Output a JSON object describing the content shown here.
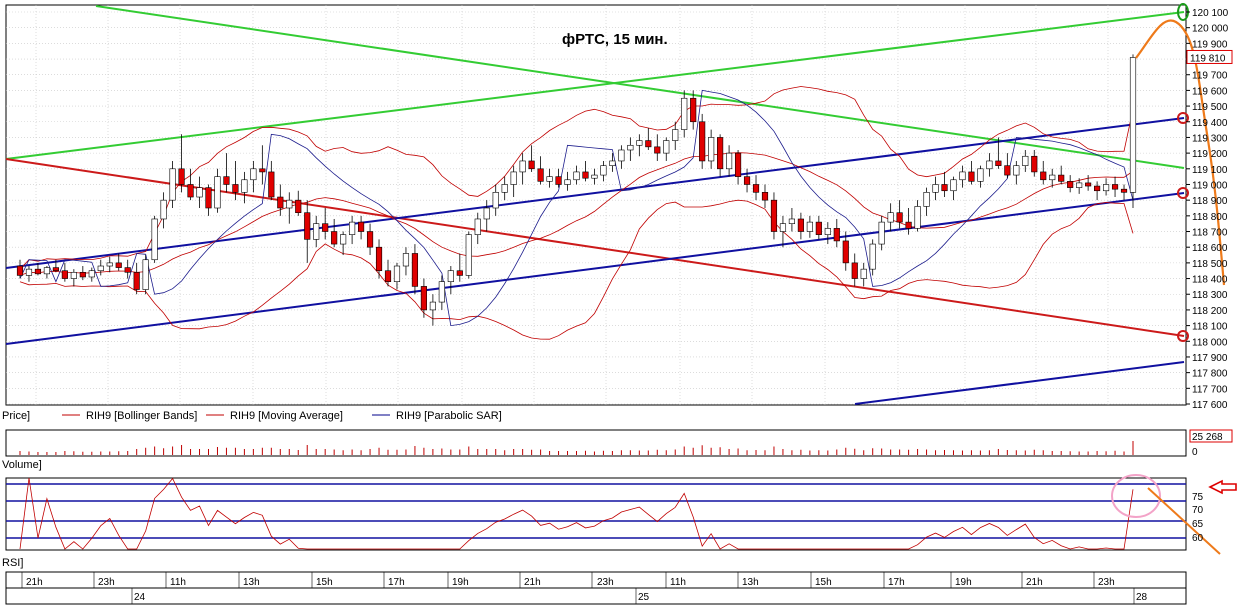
{
  "chart_title": "фРТС,  15 мин.",
  "panels": {
    "price_label": "Price]",
    "volume_label": "Volume]",
    "rsi_label": "RSI]"
  },
  "legend": [
    {
      "label": "RIH9 [Bollinger Bands]",
      "color": "#c00000"
    },
    {
      "label": "RIH9 [Moving Average]",
      "color": "#c00000"
    },
    {
      "label": "RIH9 [Parabolic SAR]",
      "color": "#00008b"
    }
  ],
  "colors": {
    "candle_up": "#ffffff",
    "candle_down": "#e00000",
    "bollinger": "#c00000",
    "sar": "#1c1c8c",
    "channel_blue": "#1010a0",
    "trend_green": "#33cc33",
    "trend_red": "#cc1a1a",
    "forecast_orange": "#ee7a1a",
    "grid": "#c8c8c8"
  },
  "price_axis": {
    "ticks": [
      120100,
      120000,
      119900,
      119800,
      119700,
      119600,
      119500,
      119400,
      119300,
      119200,
      119100,
      119000,
      118900,
      118800,
      118700,
      118600,
      118500,
      118400,
      118300,
      118200,
      118100,
      118000,
      117900,
      117800,
      117700,
      117600
    ],
    "tick_labels": [
      "120 100",
      "120 000",
      "119 900",
      "",
      "119 700",
      "119 600",
      "119 500",
      "119 400",
      "119 300",
      "119 200",
      "119 100",
      "119 000",
      "118 900",
      "118 800",
      "118 700",
      "118 600",
      "118 500",
      "118 400",
      "118 300",
      "118 200",
      "118 100",
      "118 000",
      "117 900",
      "117 800",
      "117 700",
      "117 600"
    ],
    "last_price": "119 810",
    "ylim": [
      117600,
      120150
    ]
  },
  "volume_axis": {
    "last_value": "25 268",
    "zero_label": "0"
  },
  "rsi_axis": {
    "tick_labels": [
      "75",
      "70",
      "65",
      "60"
    ],
    "levels": [
      80,
      75,
      65,
      60
    ]
  },
  "time_axis": {
    "hour_labels": [
      "21h",
      "23h",
      "11h",
      "13h",
      "15h",
      "17h",
      "19h",
      "21h",
      "23h",
      "11h",
      "13h",
      "15h",
      "17h",
      "19h",
      "21h",
      "23h"
    ],
    "date_labels": [
      "24",
      "25",
      "28"
    ]
  },
  "chart_data": {
    "type": "candlestick",
    "title": "фРТС,  15 мин.",
    "series": [
      {
        "name": "RIH9 [Bollinger Bands]"
      },
      {
        "name": "RIH9 [Moving Average]"
      },
      {
        "name": "RIH9 [Parabolic SAR]"
      }
    ],
    "ylim": [
      117600,
      120150
    ],
    "candles": [
      [
        118480,
        118520,
        118400,
        118420
      ],
      [
        118420,
        118480,
        118380,
        118460
      ],
      [
        118460,
        118500,
        118420,
        118430
      ],
      [
        118430,
        118480,
        118400,
        118470
      ],
      [
        118470,
        118520,
        118440,
        118450
      ],
      [
        118450,
        118500,
        118380,
        118400
      ],
      [
        118400,
        118460,
        118350,
        118440
      ],
      [
        118440,
        118480,
        118390,
        118410
      ],
      [
        118410,
        118470,
        118380,
        118450
      ],
      [
        118450,
        118520,
        118420,
        118480
      ],
      [
        118480,
        118540,
        118440,
        118500
      ],
      [
        118500,
        118560,
        118450,
        118470
      ],
      [
        118470,
        118520,
        118400,
        118440
      ],
      [
        118440,
        118500,
        118300,
        118330
      ],
      [
        118330,
        118550,
        118300,
        118520
      ],
      [
        118520,
        118800,
        118500,
        118780
      ],
      [
        118780,
        118950,
        118720,
        118900
      ],
      [
        118900,
        119150,
        118850,
        119100
      ],
      [
        119100,
        119320,
        118950,
        119000
      ],
      [
        119000,
        119100,
        118900,
        118920
      ],
      [
        118920,
        119050,
        118850,
        118980
      ],
      [
        118980,
        119000,
        118800,
        118850
      ],
      [
        118850,
        119100,
        118820,
        119050
      ],
      [
        119050,
        119200,
        118950,
        119000
      ],
      [
        119000,
        119150,
        118900,
        118950
      ],
      [
        118950,
        119080,
        118880,
        119030
      ],
      [
        119030,
        119150,
        118950,
        119100
      ],
      [
        119100,
        119250,
        119000,
        119080
      ],
      [
        119080,
        119150,
        118900,
        118920
      ],
      [
        118920,
        119000,
        118800,
        118850
      ],
      [
        118850,
        118950,
        118750,
        118900
      ],
      [
        118900,
        118960,
        118800,
        118820
      ],
      [
        118820,
        118900,
        118500,
        118650
      ],
      [
        118650,
        118800,
        118600,
        118750
      ],
      [
        118750,
        118850,
        118650,
        118700
      ],
      [
        118700,
        118780,
        118600,
        118620
      ],
      [
        118620,
        118700,
        118550,
        118680
      ],
      [
        118680,
        118800,
        118620,
        118760
      ],
      [
        118760,
        118800,
        118650,
        118700
      ],
      [
        118700,
        118750,
        118550,
        118600
      ],
      [
        118600,
        118650,
        118400,
        118450
      ],
      [
        118450,
        118520,
        118350,
        118380
      ],
      [
        118380,
        118500,
        118330,
        118480
      ],
      [
        118480,
        118600,
        118420,
        118560
      ],
      [
        118560,
        118620,
        118300,
        118350
      ],
      [
        118350,
        118400,
        118150,
        118200
      ],
      [
        118200,
        118300,
        118100,
        118250
      ],
      [
        118250,
        118420,
        118200,
        118380
      ],
      [
        118380,
        118480,
        118300,
        118450
      ],
      [
        118450,
        118560,
        118380,
        118420
      ],
      [
        118420,
        118700,
        118400,
        118680
      ],
      [
        118680,
        118820,
        118620,
        118780
      ],
      [
        118780,
        118900,
        118700,
        118850
      ],
      [
        118850,
        119000,
        118800,
        118950
      ],
      [
        118950,
        119050,
        118900,
        119000
      ],
      [
        119000,
        119120,
        118920,
        119080
      ],
      [
        119080,
        119200,
        119000,
        119150
      ],
      [
        119150,
        119250,
        119080,
        119100
      ],
      [
        119100,
        119180,
        119000,
        119020
      ],
      [
        119020,
        119100,
        118980,
        119050
      ],
      [
        119050,
        119100,
        118980,
        119000
      ],
      [
        119000,
        119080,
        118960,
        119030
      ],
      [
        119030,
        119120,
        119000,
        119080
      ],
      [
        119080,
        119150,
        119020,
        119040
      ],
      [
        119040,
        119100,
        119000,
        119060
      ],
      [
        119060,
        119150,
        119020,
        119120
      ],
      [
        119120,
        119200,
        119080,
        119150
      ],
      [
        119150,
        119250,
        119100,
        119220
      ],
      [
        119220,
        119300,
        119150,
        119250
      ],
      [
        119250,
        119320,
        119180,
        119280
      ],
      [
        119280,
        119360,
        119220,
        119240
      ],
      [
        119240,
        119320,
        119150,
        119200
      ],
      [
        119200,
        119300,
        119150,
        119280
      ],
      [
        119280,
        119400,
        119220,
        119350
      ],
      [
        119350,
        119600,
        119300,
        119550
      ],
      [
        119550,
        119600,
        119350,
        119400
      ],
      [
        119400,
        119450,
        119100,
        119150
      ],
      [
        119150,
        119350,
        119100,
        119300
      ],
      [
        119300,
        119320,
        119050,
        119100
      ],
      [
        119100,
        119250,
        119050,
        119200
      ],
      [
        119200,
        119220,
        119000,
        119050
      ],
      [
        119050,
        119100,
        118950,
        119000
      ],
      [
        119000,
        119060,
        118900,
        118950
      ],
      [
        118950,
        119000,
        118850,
        118900
      ],
      [
        118900,
        118950,
        118650,
        118700
      ],
      [
        118700,
        118800,
        118600,
        118750
      ],
      [
        118750,
        118850,
        118700,
        118780
      ],
      [
        118780,
        118820,
        118650,
        118700
      ],
      [
        118700,
        118800,
        118660,
        118760
      ],
      [
        118760,
        118800,
        118650,
        118680
      ],
      [
        118680,
        118760,
        118620,
        118720
      ],
      [
        118720,
        118780,
        118600,
        118640
      ],
      [
        118640,
        118700,
        118450,
        118500
      ],
      [
        118500,
        118560,
        118350,
        118400
      ],
      [
        118400,
        118500,
        118350,
        118460
      ],
      [
        118460,
        118650,
        118420,
        118620
      ],
      [
        118620,
        118800,
        118580,
        118760
      ],
      [
        118760,
        118880,
        118700,
        118820
      ],
      [
        118820,
        118900,
        118720,
        118760
      ],
      [
        118760,
        118850,
        118680,
        118720
      ],
      [
        118720,
        118900,
        118700,
        118860
      ],
      [
        118860,
        118980,
        118800,
        118950
      ],
      [
        118950,
        119050,
        118900,
        119000
      ],
      [
        119000,
        119080,
        118920,
        118960
      ],
      [
        118960,
        119050,
        118900,
        119030
      ],
      [
        119030,
        119120,
        118980,
        119080
      ],
      [
        119080,
        119150,
        119000,
        119020
      ],
      [
        119020,
        119120,
        118980,
        119100
      ],
      [
        119100,
        119200,
        119050,
        119150
      ],
      [
        119150,
        119300,
        119100,
        119120
      ],
      [
        119120,
        119200,
        119040,
        119060
      ],
      [
        119060,
        119150,
        119000,
        119120
      ],
      [
        119120,
        119220,
        119080,
        119180
      ],
      [
        119180,
        119220,
        119050,
        119080
      ],
      [
        119080,
        119150,
        119000,
        119030
      ],
      [
        119030,
        119100,
        118980,
        119060
      ],
      [
        119060,
        119120,
        119000,
        119020
      ],
      [
        119020,
        119060,
        118950,
        118980
      ],
      [
        118980,
        119040,
        118940,
        119010
      ],
      [
        119010,
        119060,
        118960,
        118990
      ],
      [
        118990,
        119020,
        118900,
        118960
      ],
      [
        118960,
        119040,
        118930,
        119000
      ],
      [
        119000,
        119050,
        118920,
        118970
      ],
      [
        118970,
        119000,
        118900,
        118950
      ],
      [
        118950,
        119830,
        118850,
        119810
      ]
    ],
    "volume": "bars",
    "rsi_levels": [
      80,
      75,
      65,
      60
    ]
  }
}
